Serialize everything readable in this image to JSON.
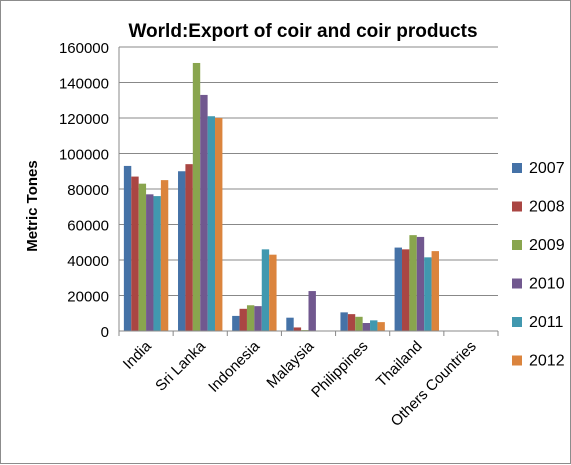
{
  "chart_data": {
    "type": "bar",
    "title": "World:Export of coir and coir products",
    "xlabel": "",
    "ylabel": "Metric Tones",
    "ylim": [
      0,
      160000
    ],
    "yticks": [
      0,
      20000,
      40000,
      60000,
      80000,
      100000,
      120000,
      140000,
      160000
    ],
    "grid": true,
    "legend_position": "right",
    "categories": [
      "India",
      "Sri Lanka",
      "Indonesia",
      "Malaysia",
      "Philippines",
      "Thailand",
      "Others Countries"
    ],
    "series": [
      {
        "name": "2007",
        "color": "#4572a7",
        "values": [
          93000,
          90000,
          8500,
          7500,
          10500,
          47000,
          0
        ]
      },
      {
        "name": "2008",
        "color": "#aa4643",
        "values": [
          87000,
          94000,
          12500,
          2000,
          9500,
          46000,
          0
        ]
      },
      {
        "name": "2009",
        "color": "#89a54e",
        "values": [
          83000,
          151000,
          14500,
          500,
          8000,
          54000,
          0
        ]
      },
      {
        "name": "2010",
        "color": "#71588f",
        "values": [
          77000,
          133000,
          14000,
          22500,
          4500,
          53000,
          0
        ]
      },
      {
        "name": "2011",
        "color": "#4198af",
        "values": [
          76000,
          121000,
          46000,
          0,
          6000,
          41500,
          0
        ]
      },
      {
        "name": "2012",
        "color": "#db843d",
        "values": [
          85000,
          120000,
          43000,
          0,
          5000,
          45000,
          0
        ]
      }
    ]
  }
}
